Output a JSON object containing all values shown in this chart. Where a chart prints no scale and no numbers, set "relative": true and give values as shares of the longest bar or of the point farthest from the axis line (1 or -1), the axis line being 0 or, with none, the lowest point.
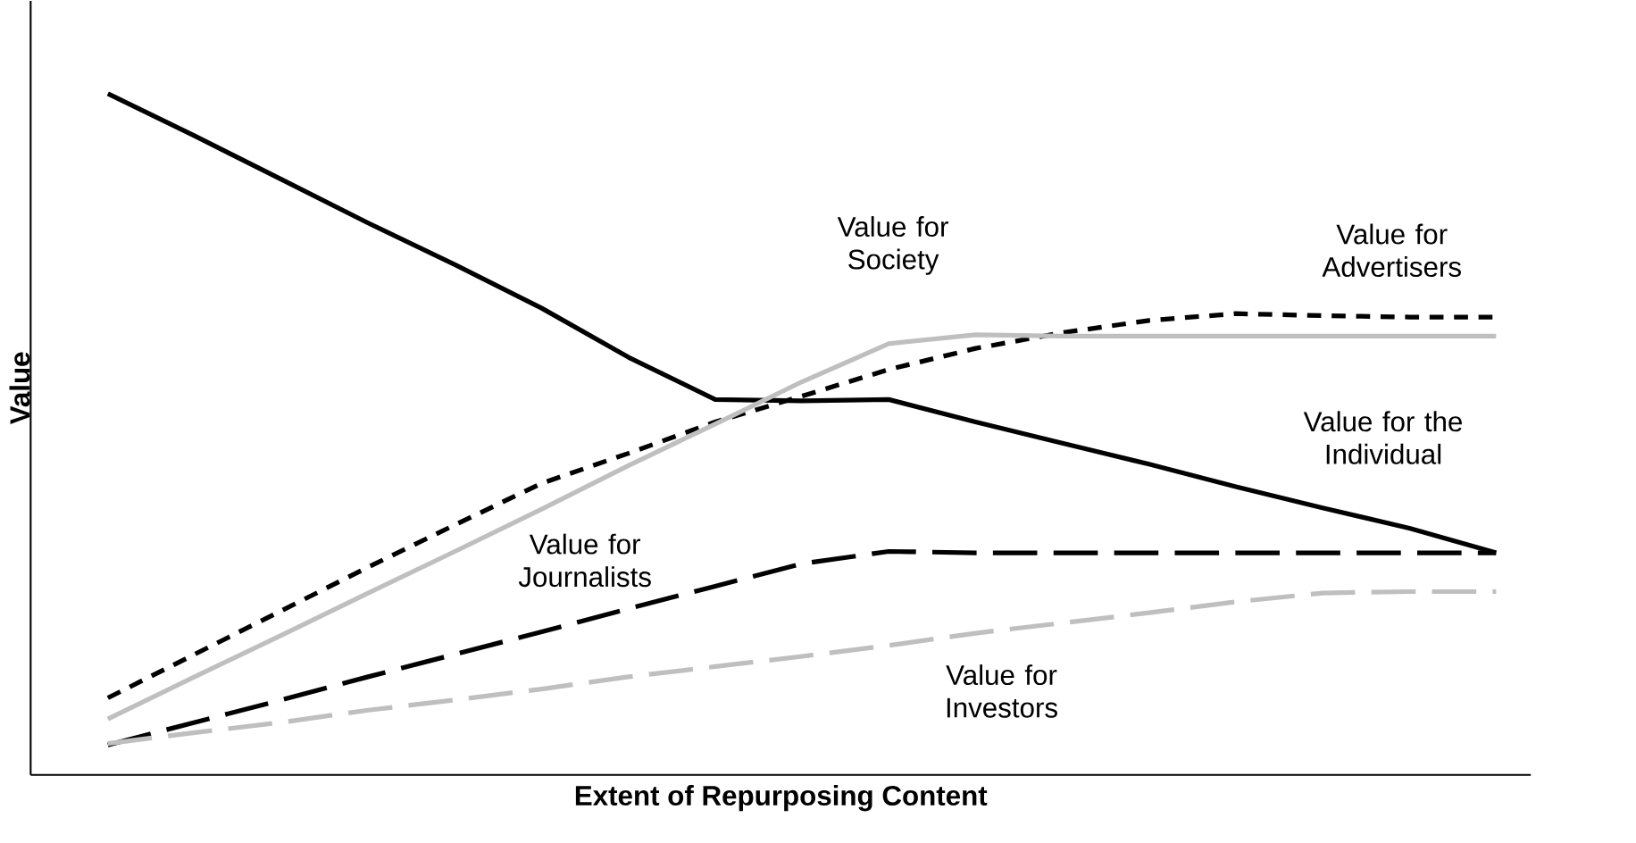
{
  "chart_data": {
    "type": "line",
    "relative": true,
    "xlabel": "Extent of Repurposing Content",
    "ylabel": "Value",
    "categories": [
      null,
      null,
      null,
      null,
      null,
      null,
      null,
      null,
      null,
      null,
      null,
      null,
      null,
      null,
      null,
      null,
      null
    ],
    "series": [
      {
        "name": "Value for the Individual",
        "color": "#000000",
        "line_style": "solid",
        "values": [
          1.0,
          0.938,
          0.874,
          0.81,
          0.749,
          0.685,
          0.613,
          0.551,
          0.549,
          0.551,
          0.518,
          0.487,
          0.456,
          0.423,
          0.392,
          0.362,
          0.326
        ]
      },
      {
        "name": "Value for Advertisers",
        "color": "#000000",
        "line_style": "dotted",
        "values": [
          0.113,
          0.177,
          0.241,
          0.305,
          0.367,
          0.428,
          0.472,
          0.518,
          0.556,
          0.595,
          0.626,
          0.649,
          0.667,
          0.677,
          0.674,
          0.672,
          0.672
        ]
      },
      {
        "name": "Value for Society",
        "color": "#bfbfbf",
        "line_style": "solid",
        "values": [
          0.082,
          0.144,
          0.205,
          0.267,
          0.328,
          0.39,
          0.454,
          0.515,
          0.577,
          0.633,
          0.646,
          0.644,
          0.644,
          0.644,
          0.644,
          0.644,
          0.644
        ]
      },
      {
        "name": "Value for Journalists",
        "color": "#000000",
        "line_style": "dashed",
        "values": [
          0.044,
          0.077,
          0.11,
          0.144,
          0.177,
          0.21,
          0.244,
          0.277,
          0.31,
          0.328,
          0.326,
          0.326,
          0.326,
          0.326,
          0.326,
          0.326,
          0.326
        ]
      },
      {
        "name": "Value for Investors",
        "color": "#bfbfbf",
        "line_style": "dashed",
        "values": [
          0.046,
          0.062,
          0.077,
          0.095,
          0.11,
          0.126,
          0.144,
          0.159,
          0.174,
          0.19,
          0.208,
          0.223,
          0.238,
          0.254,
          0.267,
          0.269,
          0.269
        ]
      }
    ]
  }
}
